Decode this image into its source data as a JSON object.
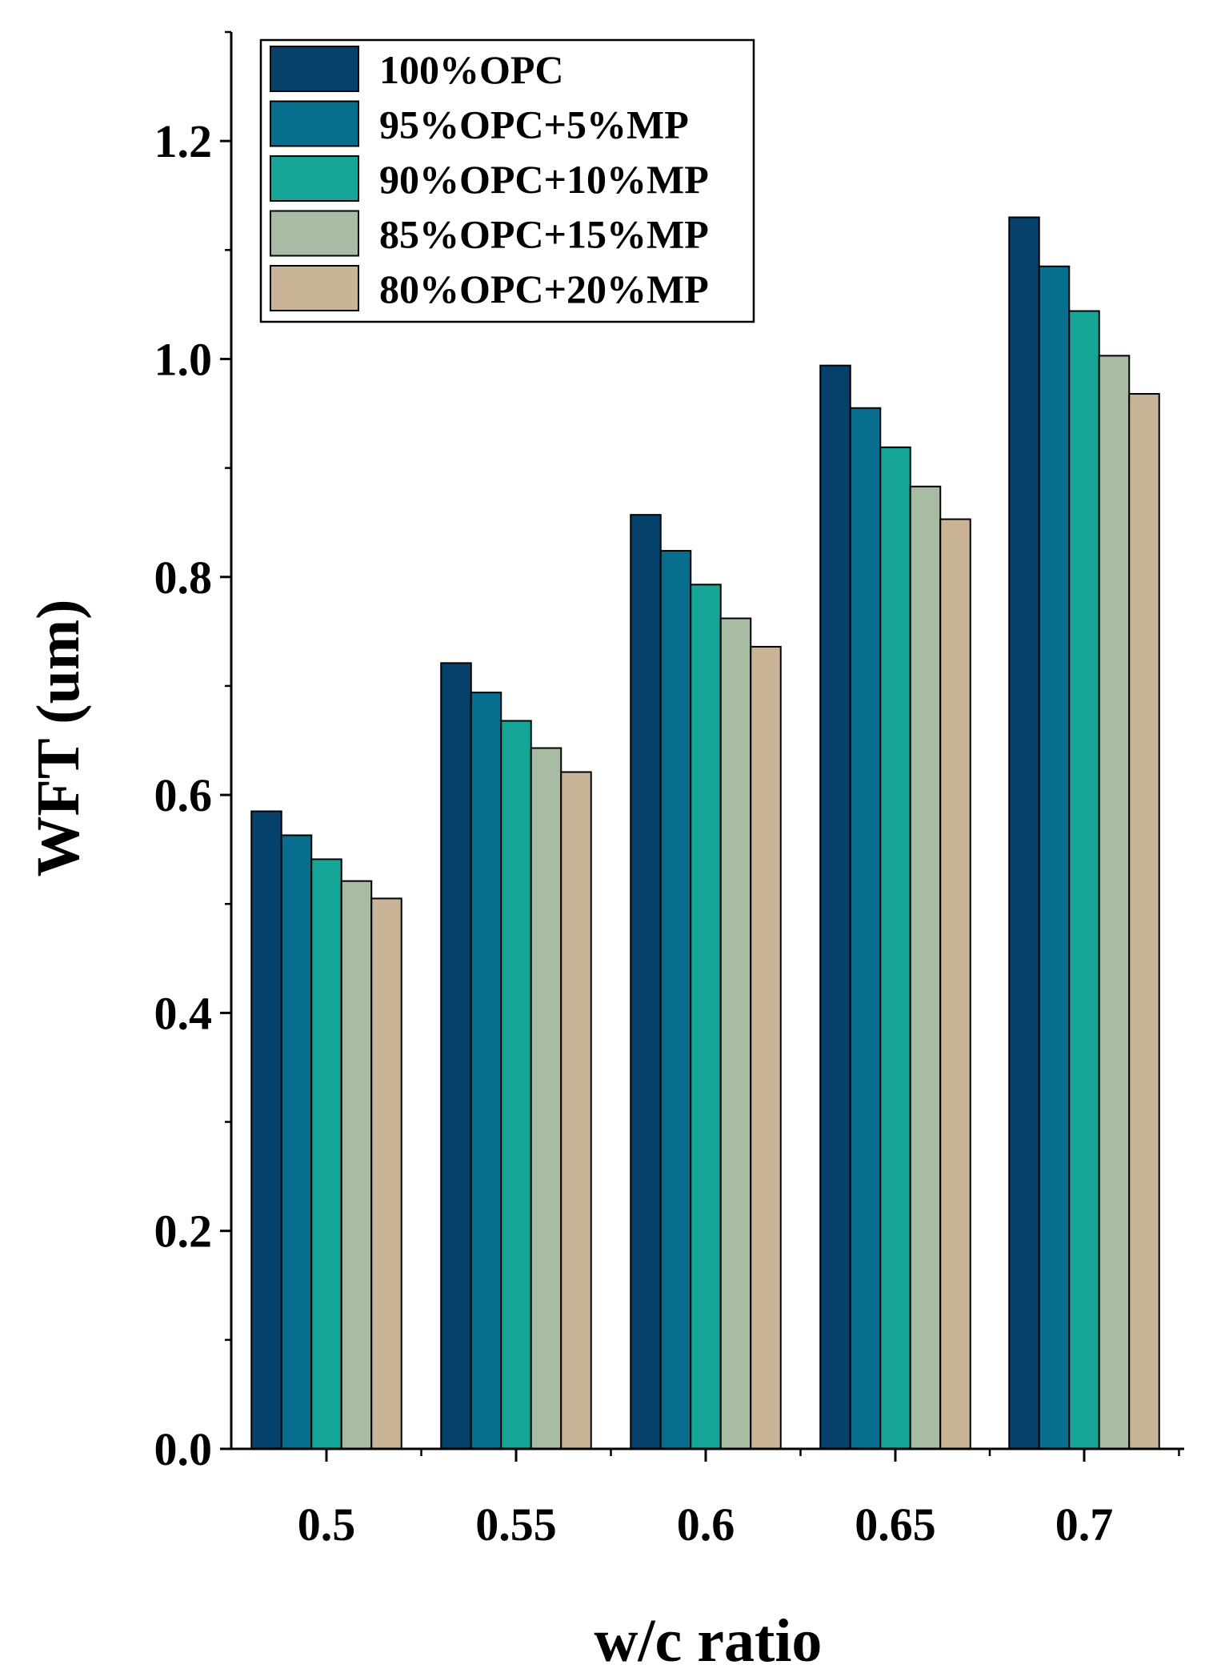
{
  "chart_data": {
    "type": "bar",
    "title": "",
    "xlabel": "w/c ratio",
    "ylabel": "WFT (um)",
    "categories": [
      "0.5",
      "0.55",
      "0.6",
      "0.65",
      "0.7"
    ],
    "ylim": [
      0,
      1.3
    ],
    "yticks": [
      "0.0",
      "0.2",
      "0.4",
      "0.6",
      "0.8",
      "1.0",
      "1.2"
    ],
    "legend_position": "top-left",
    "grid": false,
    "series": [
      {
        "name": "100%OPC",
        "color": "#05416A",
        "values": [
          0.585,
          0.721,
          0.857,
          0.994,
          1.13
        ]
      },
      {
        "name": "95%OPC+5%MP",
        "color": "#076E8E",
        "values": [
          0.563,
          0.694,
          0.824,
          0.955,
          1.085
        ]
      },
      {
        "name": "90%OPC+10%MP",
        "color": "#17A597",
        "values": [
          0.541,
          0.668,
          0.793,
          0.919,
          1.044
        ]
      },
      {
        "name": "85%OPC+15%MP",
        "color": "#A8BBA3",
        "values": [
          0.521,
          0.643,
          0.762,
          0.883,
          1.003
        ]
      },
      {
        "name": "80%OPC+20%MP",
        "color": "#C9B498",
        "values": [
          0.505,
          0.621,
          0.736,
          0.853,
          0.968
        ]
      }
    ]
  }
}
